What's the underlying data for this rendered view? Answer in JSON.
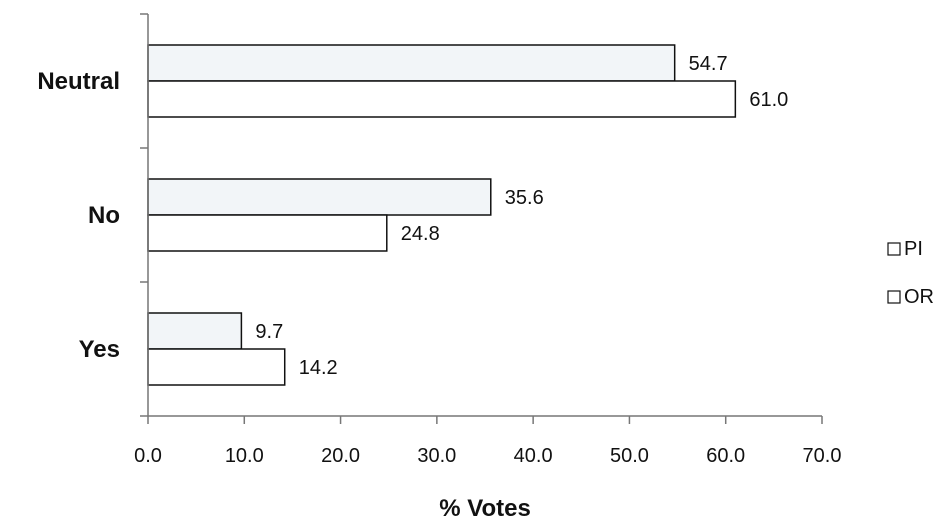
{
  "chart_data": {
    "type": "bar",
    "orientation": "horizontal",
    "categories": [
      "Yes",
      "No",
      "Neutral"
    ],
    "series": [
      {
        "name": "PI",
        "values": [
          9.7,
          35.6,
          54.7
        ],
        "labels": [
          "9.7",
          "35.6",
          "54.7"
        ],
        "color": "#f2f5f8"
      },
      {
        "name": "OR",
        "values": [
          14.2,
          24.8,
          61.0
        ],
        "labels": [
          "14.2",
          "24.8",
          "61.0"
        ],
        "color": "#ffffff"
      }
    ],
    "xlabel": "% Votes",
    "ylabel": "",
    "xlim": [
      0,
      70
    ],
    "xticks": [
      "0.0",
      "10.0",
      "20.0",
      "30.0",
      "40.0",
      "50.0",
      "60.0",
      "70.0"
    ],
    "grid": false,
    "legend_position": "right",
    "bar_stroke": "#111111"
  }
}
